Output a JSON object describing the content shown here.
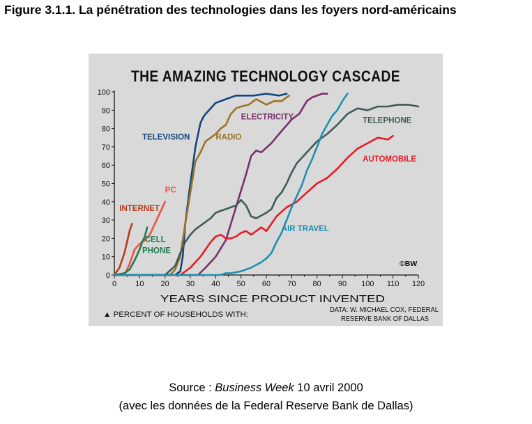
{
  "figure": {
    "title": "Figure 3.1.1. La pénétration des technologies dans les foyers nord-américains"
  },
  "source": {
    "prefix": "Source : ",
    "publication": "Business Week",
    "date": " 10 avril 2000",
    "line2": "(avec les données de la Federal Reserve Bank de Dallas)"
  },
  "chart_data": {
    "type": "line",
    "title": "THE AMAZING TECHNOLOGY CASCADE",
    "xlabel": "YEARS SINCE PRODUCT INVENTED",
    "ylabel_note": "▲ PERCENT OF HOUSEHOLDS WITH:",
    "credit": "©BW",
    "data_credit_line1": "DATA: W. MICHAEL COX, FEDERAL",
    "data_credit_line2": "RESERVE BANK OF DALLAS",
    "xlim": [
      0,
      120
    ],
    "ylim": [
      0,
      100
    ],
    "xticks": [
      0,
      10,
      20,
      30,
      40,
      50,
      60,
      70,
      80,
      90,
      100,
      110,
      120
    ],
    "yticks": [
      0,
      10,
      20,
      30,
      40,
      50,
      60,
      70,
      80,
      90,
      100
    ],
    "grid": false,
    "series": [
      {
        "name": "INTERNET",
        "color": "#b83a1e",
        "x": [
          0,
          2,
          4,
          5,
          6,
          7
        ],
        "y": [
          0,
          4,
          12,
          18,
          24,
          28
        ],
        "label_at": [
          2,
          35
        ]
      },
      {
        "name": "PC",
        "color": "#f0523c",
        "x": [
          0,
          4,
          6,
          8,
          10,
          12,
          14,
          16,
          18,
          20
        ],
        "y": [
          0,
          0,
          6,
          14,
          17,
          19,
          22,
          28,
          34,
          40
        ],
        "label_at": [
          20,
          45
        ]
      },
      {
        "name": "CELL",
        "color": "#1e7a4e",
        "x": [
          0,
          4,
          6,
          8,
          10,
          11,
          12,
          13
        ],
        "y": [
          0,
          1,
          3,
          8,
          14,
          18,
          21,
          26
        ],
        "label_at": [
          12,
          18
        ]
      },
      {
        "name": "PHONE",
        "color": "#1e7a4e",
        "label_only": true,
        "label_at": [
          11,
          12
        ]
      },
      {
        "name": "TELEVISION",
        "color": "#12457e",
        "x": [
          0,
          24,
          26,
          27,
          28,
          30,
          32,
          34,
          35,
          36,
          38,
          40,
          44,
          48,
          55,
          60,
          65,
          68
        ],
        "y": [
          0,
          0,
          2,
          10,
          28,
          50,
          70,
          83,
          86,
          88,
          91,
          94,
          96,
          98,
          98,
          99,
          98,
          99
        ],
        "label_at": [
          11,
          74
        ]
      },
      {
        "name": "RADIO",
        "color": "#9c7226",
        "x": [
          0,
          22,
          24,
          26,
          28,
          30,
          32,
          34,
          36,
          38,
          40,
          42,
          44,
          46,
          48,
          50,
          53,
          56,
          60,
          63,
          66,
          69
        ],
        "y": [
          0,
          0,
          3,
          10,
          28,
          45,
          62,
          67,
          73,
          75,
          77,
          80,
          82,
          88,
          91,
          92,
          93,
          96,
          93,
          95,
          95,
          98
        ],
        "label_at": [
          40,
          74
        ]
      },
      {
        "name": "ELECTRICITY",
        "color": "#7a2f6e",
        "x": [
          0,
          33,
          36,
          40,
          44,
          48,
          52,
          54,
          56,
          58,
          62,
          65,
          70,
          73,
          76,
          78,
          80,
          82,
          84
        ],
        "y": [
          0,
          0,
          4,
          10,
          19,
          37,
          55,
          65,
          68,
          67,
          72,
          77,
          85,
          88,
          95,
          97,
          98,
          99,
          99
        ],
        "label_at": [
          50,
          85
        ]
      },
      {
        "name": "TELEPHONE",
        "color": "#3e5b58",
        "x": [
          0,
          20,
          24,
          26,
          28,
          30,
          32,
          35,
          38,
          40,
          42,
          44,
          48,
          50,
          52,
          54,
          56,
          60,
          62,
          64,
          66,
          68,
          70,
          72,
          76,
          80,
          84,
          88,
          92,
          96,
          100,
          104,
          108,
          112,
          116,
          120
        ],
        "y": [
          0,
          0,
          5,
          12,
          18,
          22,
          25,
          28,
          31,
          34,
          35,
          36,
          38,
          41,
          38,
          32,
          31,
          34,
          36,
          42,
          45,
          50,
          56,
          61,
          67,
          73,
          77,
          82,
          88,
          91,
          90,
          92,
          92,
          93,
          93,
          92
        ],
        "label_at": [
          98,
          83
        ]
      },
      {
        "name": "AUTOMOBILE",
        "color": "#e51c24",
        "x": [
          0,
          26,
          30,
          34,
          38,
          40,
          42,
          44,
          46,
          48,
          50,
          52,
          54,
          56,
          58,
          60,
          62,
          64,
          68,
          72,
          76,
          80,
          84,
          88,
          92,
          96,
          100,
          104,
          108,
          110
        ],
        "y": [
          0,
          0,
          4,
          10,
          18,
          21,
          22,
          20,
          20,
          21,
          23,
          24,
          22,
          24,
          26,
          24,
          28,
          32,
          37,
          40,
          45,
          50,
          53,
          58,
          64,
          69,
          72,
          75,
          74,
          76
        ],
        "label_at": [
          98,
          62
        ]
      },
      {
        "name": "AIR TRAVEL",
        "color": "#1e8fb0",
        "x": [
          0,
          42,
          44,
          46,
          50,
          54,
          58,
          60,
          62,
          64,
          66,
          68,
          70,
          72,
          74,
          76,
          78,
          80,
          82,
          84,
          86,
          88,
          90,
          92
        ],
        "y": [
          0,
          0,
          1,
          1,
          2,
          4,
          7,
          9,
          12,
          18,
          23,
          30,
          37,
          43,
          49,
          57,
          63,
          70,
          77,
          82,
          87,
          90,
          95,
          99
        ],
        "label_at": [
          66,
          24
        ]
      }
    ]
  }
}
